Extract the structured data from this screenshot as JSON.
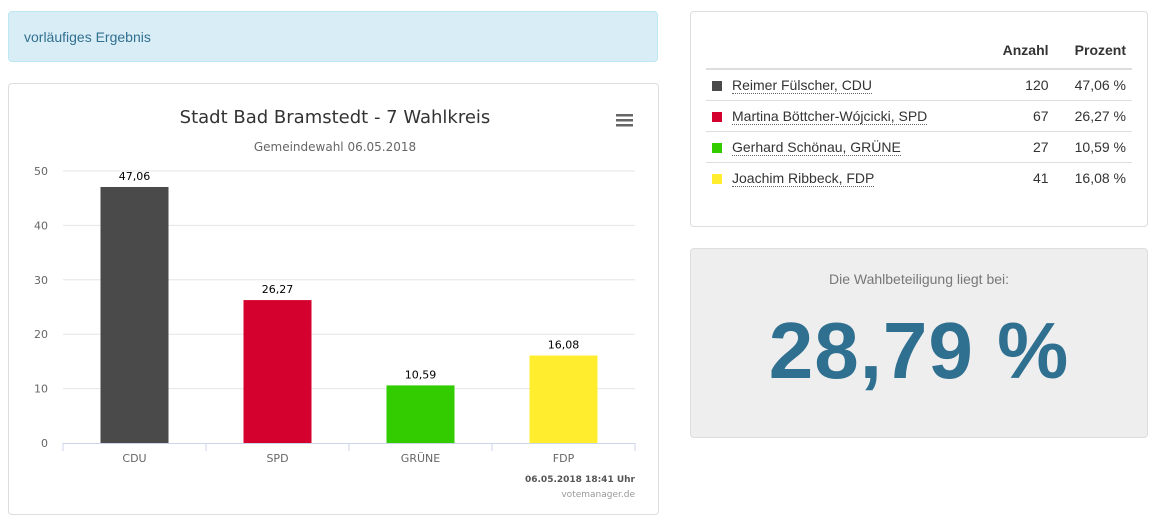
{
  "alert": {
    "text": "vorläufiges Ergebnis"
  },
  "chart": {
    "title": "Stadt Bad Bramstedt - 7 Wahlkreis",
    "subtitle": "Gemeindewahl 06.05.2018",
    "timestamp": "06.05.2018 18:41 Uhr",
    "credit": "votemanager.de",
    "menu_icon": "hamburger-menu-icon"
  },
  "chart_data": {
    "type": "bar",
    "title": "Stadt Bad Bramstedt - 7 Wahlkreis",
    "subtitle": "Gemeindewahl 06.05.2018",
    "categories": [
      "CDU",
      "SPD",
      "GRÜNE",
      "FDP"
    ],
    "values": [
      47.06,
      26.27,
      10.59,
      16.08
    ],
    "data_labels": [
      "47,06",
      "26,27",
      "10,59",
      "16,08"
    ],
    "colors": [
      "#4a4a4a",
      "#d4002d",
      "#33cc00",
      "#ffed2e"
    ],
    "ylim": [
      0,
      50
    ],
    "yticks": [
      0,
      10,
      20,
      30,
      40,
      50
    ],
    "grid": true,
    "xlabel": "",
    "ylabel": ""
  },
  "table": {
    "headers": {
      "anzahl": "Anzahl",
      "prozent": "Prozent"
    },
    "rows": [
      {
        "name": "Reimer Fülscher, CDU",
        "anzahl": "120",
        "prozent": "47,06 %",
        "color": "#4a4a4a"
      },
      {
        "name": "Martina Böttcher-Wójcicki, SPD",
        "anzahl": "67",
        "prozent": "26,27 %",
        "color": "#d4002d"
      },
      {
        "name": "Gerhard Schönau, GRÜNE",
        "anzahl": "27",
        "prozent": "10,59 %",
        "color": "#33cc00"
      },
      {
        "name": "Joachim Ribbeck, FDP",
        "anzahl": "41",
        "prozent": "16,08 %",
        "color": "#ffed2e"
      }
    ]
  },
  "turnout": {
    "label": "Die Wahlbeteiligung liegt bei:",
    "value": "28,79 %"
  }
}
